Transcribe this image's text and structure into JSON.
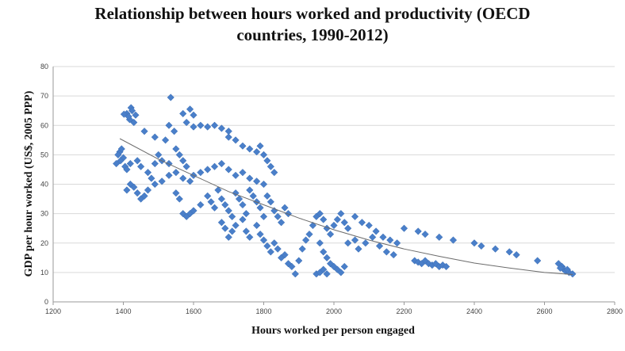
{
  "chart_data": {
    "type": "scatter",
    "title_line1": "Relationship between hours worked and productivity (OECD",
    "title_line2": "countries, 1990-2012)",
    "xlabel": "Hours worked per person engaged",
    "ylabel": "GDP per hour worked (US$, 2005 PPP)",
    "xlim": [
      1200,
      2800
    ],
    "ylim": [
      0,
      80
    ],
    "xticks": [
      1200,
      1400,
      1600,
      1800,
      2000,
      2200,
      2400,
      2600,
      2800
    ],
    "yticks": [
      0,
      10,
      20,
      30,
      40,
      50,
      60,
      70,
      80
    ],
    "grid": "horizontal",
    "legend": "none",
    "marker_color": "#4a7fc9",
    "trendline_color": "#6b6b6b",
    "trendline": [
      [
        1390,
        55.5
      ],
      [
        1500,
        48.5
      ],
      [
        1600,
        43
      ],
      [
        1700,
        37.5
      ],
      [
        1800,
        33
      ],
      [
        1900,
        28.5
      ],
      [
        2000,
        24.5
      ],
      [
        2100,
        21
      ],
      [
        2200,
        18
      ],
      [
        2300,
        15.5
      ],
      [
        2400,
        13.2
      ],
      [
        2500,
        11.5
      ],
      [
        2600,
        10
      ],
      [
        2680,
        9.3
      ]
    ],
    "points": [
      [
        1535,
        69.5
      ],
      [
        1422,
        66
      ],
      [
        1410,
        64
      ],
      [
        1418,
        62
      ],
      [
        1430,
        61
      ],
      [
        1415,
        63
      ],
      [
        1435,
        63.5
      ],
      [
        1402,
        63.8
      ],
      [
        1425,
        65
      ],
      [
        1590,
        65.5
      ],
      [
        1570,
        64
      ],
      [
        1600,
        63.5
      ],
      [
        1580,
        61
      ],
      [
        1620,
        60
      ],
      [
        1640,
        59.5
      ],
      [
        1660,
        60
      ],
      [
        1680,
        59
      ],
      [
        1700,
        58
      ],
      [
        1600,
        59.5
      ],
      [
        1530,
        60
      ],
      [
        1545,
        58
      ],
      [
        1460,
        58
      ],
      [
        1490,
        56
      ],
      [
        1520,
        55
      ],
      [
        1720,
        55
      ],
      [
        1740,
        53
      ],
      [
        1760,
        52
      ],
      [
        1780,
        51
      ],
      [
        1790,
        53
      ],
      [
        1800,
        50
      ],
      [
        1810,
        48
      ],
      [
        1820,
        46
      ],
      [
        1830,
        44
      ],
      [
        1700,
        56
      ],
      [
        1390,
        51
      ],
      [
        1385,
        50
      ],
      [
        1395,
        52
      ],
      [
        1400,
        49
      ],
      [
        1380,
        47
      ],
      [
        1392,
        48
      ],
      [
        1405,
        46
      ],
      [
        1410,
        45
      ],
      [
        1420,
        47
      ],
      [
        1440,
        48
      ],
      [
        1450,
        46
      ],
      [
        1470,
        44
      ],
      [
        1480,
        42
      ],
      [
        1490,
        47
      ],
      [
        1500,
        50
      ],
      [
        1510,
        48
      ],
      [
        1530,
        47
      ],
      [
        1550,
        52
      ],
      [
        1560,
        50
      ],
      [
        1570,
        48
      ],
      [
        1580,
        46
      ],
      [
        1420,
        40
      ],
      [
        1430,
        39
      ],
      [
        1410,
        38
      ],
      [
        1440,
        37
      ],
      [
        1450,
        35
      ],
      [
        1460,
        36
      ],
      [
        1470,
        38
      ],
      [
        1490,
        40
      ],
      [
        1510,
        41
      ],
      [
        1530,
        43
      ],
      [
        1550,
        44
      ],
      [
        1570,
        42
      ],
      [
        1590,
        41
      ],
      [
        1600,
        43
      ],
      [
        1620,
        44
      ],
      [
        1640,
        45
      ],
      [
        1660,
        46
      ],
      [
        1680,
        47
      ],
      [
        1700,
        45
      ],
      [
        1720,
        43
      ],
      [
        1740,
        44
      ],
      [
        1760,
        42
      ],
      [
        1780,
        41
      ],
      [
        1800,
        40
      ],
      [
        1550,
        37
      ],
      [
        1560,
        35
      ],
      [
        1570,
        30
      ],
      [
        1580,
        29
      ],
      [
        1590,
        30
      ],
      [
        1600,
        31
      ],
      [
        1620,
        33
      ],
      [
        1640,
        36
      ],
      [
        1650,
        34
      ],
      [
        1660,
        32
      ],
      [
        1670,
        38
      ],
      [
        1680,
        35
      ],
      [
        1690,
        33
      ],
      [
        1700,
        31
      ],
      [
        1710,
        29
      ],
      [
        1720,
        37
      ],
      [
        1730,
        35
      ],
      [
        1740,
        33
      ],
      [
        1750,
        30
      ],
      [
        1760,
        38
      ],
      [
        1770,
        36
      ],
      [
        1780,
        34
      ],
      [
        1790,
        32
      ],
      [
        1800,
        29
      ],
      [
        1810,
        36
      ],
      [
        1820,
        34
      ],
      [
        1830,
        31
      ],
      [
        1840,
        29
      ],
      [
        1850,
        27
      ],
      [
        1860,
        32
      ],
      [
        1870,
        30
      ],
      [
        1680,
        27
      ],
      [
        1690,
        25
      ],
      [
        1700,
        22
      ],
      [
        1710,
        24
      ],
      [
        1720,
        26
      ],
      [
        1740,
        28
      ],
      [
        1750,
        24
      ],
      [
        1760,
        22
      ],
      [
        1780,
        26
      ],
      [
        1790,
        23
      ],
      [
        1800,
        21
      ],
      [
        1810,
        19
      ],
      [
        1820,
        17
      ],
      [
        1830,
        20
      ],
      [
        1840,
        18
      ],
      [
        1850,
        15
      ],
      [
        1860,
        16
      ],
      [
        1870,
        13
      ],
      [
        1880,
        12
      ],
      [
        1890,
        9.5
      ],
      [
        1900,
        14
      ],
      [
        1910,
        18
      ],
      [
        1920,
        21
      ],
      [
        1930,
        23
      ],
      [
        1940,
        26
      ],
      [
        1950,
        29
      ],
      [
        1960,
        30
      ],
      [
        1970,
        28
      ],
      [
        1980,
        25
      ],
      [
        1990,
        23
      ],
      [
        2000,
        26
      ],
      [
        2010,
        28
      ],
      [
        2020,
        30
      ],
      [
        2030,
        27
      ],
      [
        2040,
        25
      ],
      [
        1960,
        20
      ],
      [
        1970,
        17
      ],
      [
        1980,
        15
      ],
      [
        1990,
        13
      ],
      [
        2000,
        12
      ],
      [
        2010,
        11
      ],
      [
        2020,
        10
      ],
      [
        2030,
        12
      ],
      [
        1950,
        9.5
      ],
      [
        1960,
        10
      ],
      [
        1970,
        11
      ],
      [
        1980,
        9.5
      ],
      [
        2060,
        29
      ],
      [
        2080,
        27
      ],
      [
        2100,
        26
      ],
      [
        2120,
        24
      ],
      [
        2140,
        22
      ],
      [
        2160,
        21
      ],
      [
        2180,
        20
      ],
      [
        2200,
        25
      ],
      [
        2070,
        18
      ],
      [
        2090,
        20
      ],
      [
        2110,
        22
      ],
      [
        2130,
        19
      ],
      [
        2150,
        17
      ],
      [
        2170,
        16
      ],
      [
        2060,
        21
      ],
      [
        2040,
        20
      ],
      [
        2240,
        24
      ],
      [
        2260,
        23
      ],
      [
        2300,
        22
      ],
      [
        2340,
        21
      ],
      [
        2400,
        20
      ],
      [
        2420,
        19
      ],
      [
        2460,
        18
      ],
      [
        2500,
        17
      ],
      [
        2520,
        16
      ],
      [
        2580,
        14
      ],
      [
        2230,
        14
      ],
      [
        2240,
        13.5
      ],
      [
        2250,
        13
      ],
      [
        2260,
        14
      ],
      [
        2270,
        13
      ],
      [
        2280,
        12.5
      ],
      [
        2290,
        13
      ],
      [
        2300,
        12
      ],
      [
        2310,
        12.5
      ],
      [
        2320,
        12
      ],
      [
        2640,
        13
      ],
      [
        2650,
        12
      ],
      [
        2655,
        11
      ],
      [
        2660,
        10.5
      ],
      [
        2670,
        10
      ],
      [
        2680,
        9.5
      ],
      [
        2645,
        11.5
      ],
      [
        2665,
        11
      ]
    ]
  }
}
